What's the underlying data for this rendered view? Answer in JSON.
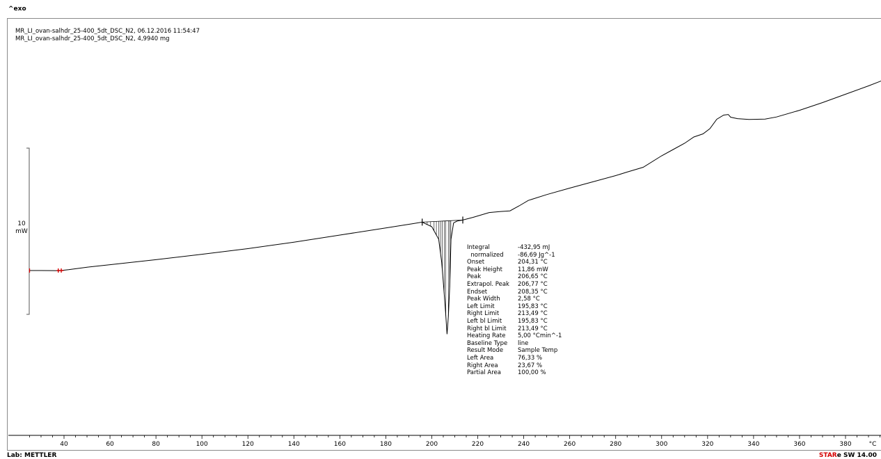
{
  "window": {
    "exo_label": "^exo"
  },
  "header": {
    "line1": "MR_LI_ovan-salhdr_25-400_5dt_DSC_N2, 06.12.2016 11:54:47",
    "line2": "MR_LI_ovan-salhdr_25-400_5dt_DSC_N2, 4,9940 mg"
  },
  "scale_bar": {
    "value": "10",
    "unit": "mW"
  },
  "footer": {
    "lab": "Lab: METTLER",
    "brand_star": "STAR",
    "brand_rest": "e SW 14.00"
  },
  "results": [
    {
      "label": "Integral",
      "value": "-432,95 mJ"
    },
    {
      "label": "  normalized",
      "value": "-86,69 Jg^-1"
    },
    {
      "label": "Onset",
      "value": "204,31 °C"
    },
    {
      "label": "Peak Height",
      "value": "11,86 mW"
    },
    {
      "label": "Peak",
      "value": "206,65 °C"
    },
    {
      "label": "Extrapol. Peak",
      "value": "206,77 °C"
    },
    {
      "label": "Endset",
      "value": "208,35 °C"
    },
    {
      "label": "Peak Width",
      "value": "2,58 °C"
    },
    {
      "label": "Left Limit",
      "value": "195,83 °C"
    },
    {
      "label": "Right Limit",
      "value": "213,49 °C"
    },
    {
      "label": "Left bl Limit",
      "value": "195,83 °C"
    },
    {
      "label": "Right bl Limit",
      "value": "213,49 °C"
    },
    {
      "label": "Heating Rate",
      "value": "5,00 °Cmin^-1"
    },
    {
      "label": "Baseline Type",
      "value": "line"
    },
    {
      "label": "Result Mode",
      "value": "Sample Temp"
    },
    {
      "label": "Left Area",
      "value": "76,33 %"
    },
    {
      "label": "Right Area",
      "value": "23,67 %"
    },
    {
      "label": "Partial Area",
      "value": "100,00 %"
    }
  ],
  "chart_data": {
    "type": "line",
    "title": "",
    "xlabel": "°C",
    "ylabel": "^exo",
    "xlim": [
      25,
      400
    ],
    "x_ticks": [
      40,
      60,
      80,
      100,
      120,
      140,
      160,
      180,
      200,
      220,
      240,
      260,
      280,
      300,
      320,
      340,
      360,
      380
    ],
    "grid": false,
    "series": [
      {
        "x": [
          25,
          30,
          35,
          38,
          42,
          50,
          60,
          80,
          100,
          120,
          140,
          160,
          180,
          192,
          195.83,
          200,
          203,
          204.3,
          205.2,
          206,
          206.65,
          207.2,
          207.8,
          208.35,
          209.5,
          211,
          213.49,
          218,
          225,
          230,
          234,
          238,
          242,
          250,
          260,
          270,
          280,
          285,
          292,
          300,
          305,
          310,
          314,
          318,
          321,
          324,
          327,
          329,
          330,
          333,
          338,
          345,
          350,
          360,
          370,
          380,
          390,
          400
        ],
        "y": [
          0,
          0,
          -0.05,
          -0.1,
          0.4,
          1.6,
          2.8,
          5.2,
          7.8,
          10.5,
          13.6,
          17.0,
          20.4,
          22.5,
          23.2,
          21.0,
          15.0,
          4.0,
          -8.0,
          -20.0,
          -30.5,
          -22.0,
          -8.0,
          15.0,
          22.8,
          23.7,
          24.2,
          25.5,
          27.8,
          28.3,
          28.6,
          31.0,
          33.6,
          36.4,
          39.5,
          42.5,
          45.5,
          47.2,
          49.5,
          55.0,
          58.0,
          61.0,
          64.0,
          65.5,
          68.0,
          72.5,
          74.5,
          74.8,
          73.5,
          72.8,
          72.4,
          72.6,
          73.6,
          76.8,
          80.5,
          84.5,
          88.5,
          92.8
        ]
      }
    ]
  }
}
